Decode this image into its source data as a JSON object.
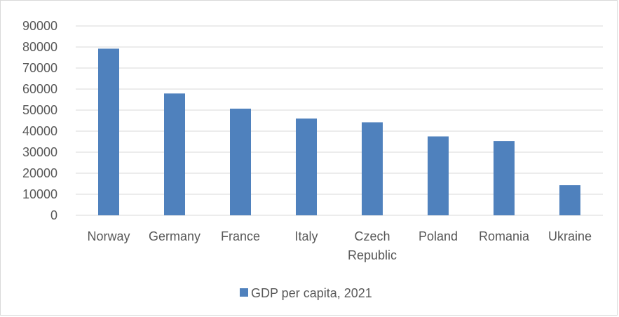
{
  "chart_data": {
    "type": "bar",
    "categories": [
      "Norway",
      "Germany",
      "France",
      "Italy",
      "Czech Republic",
      "Poland",
      "Romania",
      "Ukraine"
    ],
    "series": [
      {
        "name": "GDP per capita, 2021",
        "values": [
          79200,
          57900,
          50700,
          46000,
          44200,
          37500,
          35300,
          14300
        ],
        "color": "#4f81bd"
      }
    ],
    "ylim": [
      0,
      90000
    ],
    "yticks": [
      "0",
      "10000",
      "20000",
      "30000",
      "40000",
      "50000",
      "60000",
      "70000",
      "80000",
      "90000"
    ],
    "grid": true,
    "legend_position": "bottom",
    "gridline_color": "#d9d9d9",
    "axis_color": "#d9d9d9",
    "text_color": "#595959"
  }
}
